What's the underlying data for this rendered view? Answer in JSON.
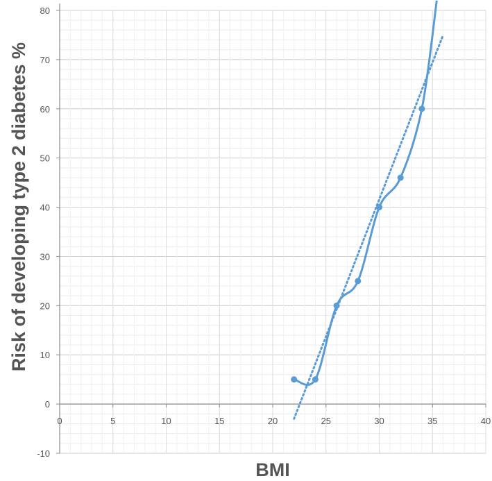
{
  "chart_data": {
    "type": "line",
    "title": "",
    "xlabel": "BMI",
    "ylabel": "Risk of developing type 2 diabetes %",
    "xlim": [
      0,
      40
    ],
    "ylim": [
      -10,
      80
    ],
    "x_ticks": [
      0,
      5,
      10,
      15,
      20,
      25,
      30,
      35,
      40
    ],
    "y_ticks": [
      -10,
      0,
      10,
      20,
      30,
      40,
      50,
      60,
      70,
      80
    ],
    "grid": true,
    "legend": "none",
    "series": [
      {
        "style": "smooth-line-with-markers",
        "color": "#5b9bd5",
        "points": [
          {
            "x": 22,
            "y": 5
          },
          {
            "x": 24,
            "y": 5
          },
          {
            "x": 26,
            "y": 20
          },
          {
            "x": 28,
            "y": 25
          },
          {
            "x": 30,
            "y": 40
          },
          {
            "x": 32,
            "y": 46
          },
          {
            "x": 34,
            "y": 60
          }
        ],
        "curve_extension": [
          {
            "x": 35.4,
            "y": 82
          }
        ]
      },
      {
        "style": "dotted-trendline",
        "color": "#5b9bd5",
        "points": [
          {
            "x": 22,
            "y": -3
          },
          {
            "x": 36,
            "y": 75
          }
        ]
      }
    ]
  }
}
